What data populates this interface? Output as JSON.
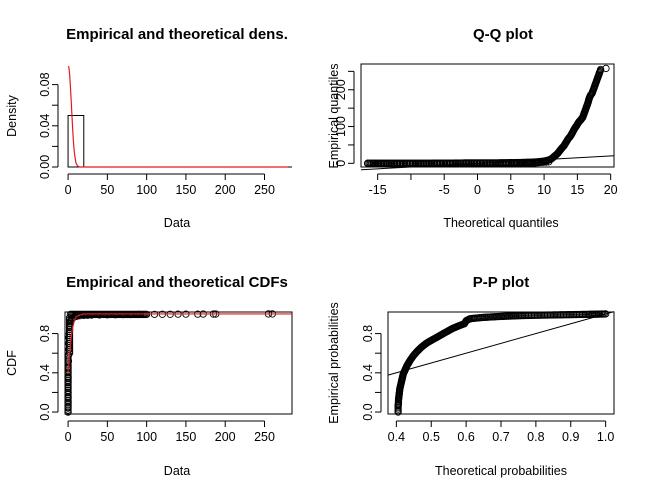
{
  "chart_data": [
    {
      "type": "histogram-density",
      "title": "Empirical and theoretical dens.",
      "xlabel": "Data",
      "ylabel": "Density",
      "xlim": [
        -3.9,
        285
      ],
      "ylim": [
        0,
        0.1
      ],
      "xticks": [
        "0",
        "50",
        "100",
        "150",
        "200",
        "250"
      ],
      "yticks": [
        "0.00",
        "0.04",
        "0.08"
      ],
      "yticks_minor": [
        0.02,
        0.06
      ],
      "histogram": {
        "bin_edges": [
          0,
          20
        ],
        "density": [
          0.05
        ]
      },
      "density_curve": {
        "color": "#e31a1c",
        "x": [
          0.5,
          1,
          2,
          3,
          4,
          5,
          6,
          7,
          8,
          10,
          12,
          14,
          16,
          18,
          20,
          25,
          30,
          50,
          100,
          150,
          200,
          250,
          280
        ],
        "y": [
          0.098,
          0.097,
          0.09,
          0.078,
          0.064,
          0.049,
          0.035,
          0.023,
          0.014,
          0.004,
          0.001,
          0.0003,
          0,
          0,
          0,
          0,
          0,
          0,
          0,
          0,
          0,
          0,
          0
        ]
      }
    },
    {
      "type": "qq",
      "title": "Q-Q plot",
      "xlabel": "Theoretical quantiles",
      "ylabel": "Empirical quantiles",
      "xlim": [
        -17.5,
        20.5
      ],
      "ylim": [
        -10,
        270
      ],
      "xticks": [
        "-15",
        "-5",
        "0",
        "5",
        "10",
        "15",
        "20"
      ],
      "xticks_all": [
        -15,
        -10,
        -5,
        0,
        5,
        10,
        15,
        20
      ],
      "yticks": [
        "0",
        "100",
        "200"
      ],
      "yticks_minor": [
        50,
        150,
        250
      ],
      "reference_line": {
        "x": [
          -17.5,
          20.5
        ],
        "y": [
          -17.5,
          20.5
        ]
      },
      "points": {
        "x": [
          -16.5,
          -15.5,
          -14,
          -12,
          -10,
          -8,
          -6,
          -4,
          -2,
          0,
          2,
          4,
          6,
          8,
          9,
          10,
          10.5,
          11,
          11.3,
          11.6,
          12,
          12.3,
          12.6,
          13,
          13.3,
          13.6,
          14,
          14.3,
          14.6,
          14.9,
          15.2,
          15.5,
          15.8,
          16,
          16.2,
          16.4,
          16.6,
          16.8,
          17,
          17.2,
          18.5,
          19.3
        ],
        "y": [
          0,
          0,
          0,
          0,
          0,
          0,
          0.5,
          0.5,
          1,
          1,
          1,
          1.5,
          2,
          3,
          4,
          6,
          8,
          11,
          15,
          20,
          26,
          33,
          40,
          48,
          57,
          66,
          75,
          85,
          95,
          103,
          112,
          118,
          125,
          135,
          145,
          155,
          165,
          178,
          186,
          190,
          255,
          258
        ]
      }
    },
    {
      "type": "cdf",
      "title": "Empirical and theoretical CDFs",
      "xlabel": "Data",
      "ylabel": "CDF",
      "xlim": [
        -3.9,
        285
      ],
      "ylim": [
        -0.02,
        1.02
      ],
      "xticks": [
        "0",
        "50",
        "100",
        "150",
        "200",
        "250"
      ],
      "yticks": [
        "0.0",
        "0.4",
        "0.8"
      ],
      "yticks_minor": [
        0.2,
        0.6
      ],
      "theoretical_curve": {
        "color": "#e31a1c",
        "x": [
          0,
          0.5,
          1,
          2,
          3,
          4,
          5,
          6,
          8,
          10,
          15,
          20,
          30,
          285
        ],
        "y": [
          0.4,
          0.45,
          0.5,
          0.6,
          0.68,
          0.76,
          0.82,
          0.87,
          0.93,
          0.97,
          0.99,
          1.0,
          1.0,
          1.0
        ]
      },
      "points": {
        "x": [
          0,
          0,
          0,
          0,
          0,
          0,
          0,
          0,
          0,
          0,
          0.5,
          0.5,
          1,
          1,
          1,
          1.5,
          2,
          2,
          3,
          3,
          4,
          5,
          6,
          8,
          10,
          12,
          15,
          20,
          25,
          30,
          40,
          50,
          60,
          70,
          80,
          90,
          100,
          110,
          120,
          130,
          140,
          150,
          165,
          172,
          185,
          188,
          255,
          260
        ],
        "y": [
          0,
          0.05,
          0.1,
          0.15,
          0.2,
          0.25,
          0.3,
          0.35,
          0.4,
          0.45,
          0.52,
          0.58,
          0.64,
          0.7,
          0.76,
          0.8,
          0.84,
          0.87,
          0.9,
          0.92,
          0.94,
          0.95,
          0.96,
          0.97,
          0.975,
          0.98,
          0.982,
          0.985,
          0.987,
          0.989,
          0.99,
          0.991,
          0.992,
          0.993,
          0.994,
          0.995,
          0.996,
          0.996,
          0.997,
          0.997,
          0.998,
          0.998,
          0.998,
          0.999,
          0.999,
          0.999,
          1.0,
          1.0
        ]
      }
    },
    {
      "type": "pp",
      "title": "P-P plot",
      "xlabel": "Theoretical probabilities",
      "ylabel": "Empirical probabilities",
      "xlim": [
        0.376,
        1.024
      ],
      "ylim": [
        -0.02,
        1.02
      ],
      "xticks": [
        "0.4",
        "0.5",
        "0.6",
        "0.7",
        "0.8",
        "0.9",
        "1.0"
      ],
      "yticks": [
        "0.0",
        "0.4",
        "0.8"
      ],
      "yticks_minor": [
        0.2,
        0.6
      ],
      "reference_line": {
        "x": [
          0.376,
          1.024
        ],
        "y": [
          0.376,
          1.024
        ]
      },
      "points": {
        "x": [
          0.405,
          0.405,
          0.405,
          0.406,
          0.406,
          0.407,
          0.408,
          0.409,
          0.41,
          0.412,
          0.414,
          0.416,
          0.418,
          0.42,
          0.425,
          0.43,
          0.435,
          0.44,
          0.45,
          0.46,
          0.47,
          0.48,
          0.49,
          0.5,
          0.52,
          0.54,
          0.56,
          0.58,
          0.595,
          0.6,
          0.61,
          0.62,
          0.65,
          0.7,
          0.75,
          0.8,
          0.85,
          0.9,
          0.95,
          0.98,
          1.0
        ],
        "y": [
          0,
          0.03,
          0.06,
          0.09,
          0.12,
          0.15,
          0.18,
          0.21,
          0.24,
          0.27,
          0.3,
          0.33,
          0.36,
          0.39,
          0.43,
          0.47,
          0.5,
          0.53,
          0.58,
          0.62,
          0.655,
          0.685,
          0.71,
          0.73,
          0.77,
          0.81,
          0.85,
          0.88,
          0.9,
          0.93,
          0.95,
          0.955,
          0.965,
          0.975,
          0.982,
          0.987,
          0.99,
          0.993,
          0.996,
          0.998,
          1.0
        ]
      }
    }
  ]
}
